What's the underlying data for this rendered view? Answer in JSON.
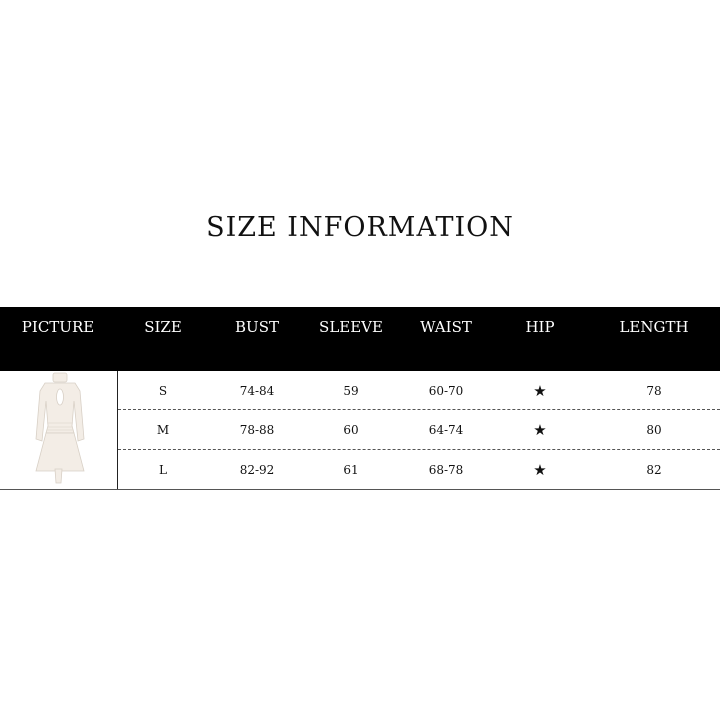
{
  "title": "SIZE INFORMATION",
  "headers": [
    "PICTURE",
    "SIZE",
    "BUST",
    "SLEEVE",
    "WAIST",
    "HIP",
    "LENGTH"
  ],
  "rows": [
    {
      "size": "S",
      "bust": "74-84",
      "sleeve": "59",
      "waist": "60-70",
      "hip": "★",
      "length": "78"
    },
    {
      "size": "M",
      "bust": "78-88",
      "sleeve": "60",
      "waist": "64-74",
      "hip": "★",
      "length": "80"
    },
    {
      "size": "L",
      "bust": "82-92",
      "sleeve": "61",
      "waist": "68-78",
      "hip": "★",
      "length": "82"
    }
  ],
  "picture_icon": "white-dress-icon"
}
